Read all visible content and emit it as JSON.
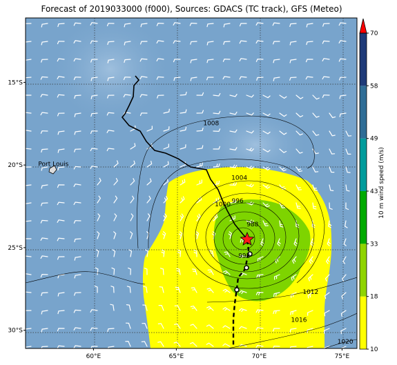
{
  "title": "Forecast of 2019033000 (f000), Sources: GDACS (TC track), GFS (Meteo)",
  "axes": {
    "lon_ticks": [
      {
        "lon": 60,
        "label": "60°E"
      },
      {
        "lon": 65,
        "label": "65°E"
      },
      {
        "lon": 70,
        "label": "70°E"
      },
      {
        "lon": 75,
        "label": "75°E"
      }
    ],
    "lat_ticks": [
      {
        "lat": -15,
        "label": "15°S"
      },
      {
        "lat": -20,
        "label": "20°S"
      },
      {
        "lat": -25,
        "label": "25°S"
      },
      {
        "lat": -30,
        "label": "30°S"
      }
    ],
    "lon_range": [
      55.9,
      75.9
    ],
    "lat_range": [
      -11.1,
      -31.1
    ]
  },
  "colorbar": {
    "label": "10 m wind speed (m/s)",
    "ticks": [
      "10",
      "18",
      "33",
      "43",
      "49",
      "58",
      "70"
    ],
    "colors": [
      "#ffff00",
      "#8fd400",
      "#00aa00",
      "#009c9c",
      "#2f6d96",
      "#1e3a78"
    ],
    "extend_color": "#ff0000"
  },
  "city": {
    "name": "Port Louis",
    "lat": -20.15,
    "lon": 57.5
  },
  "isobars": [
    {
      "label": "1000",
      "lat": -22.5,
      "lon": 67.8
    },
    {
      "label": "1004",
      "lat": -20.9,
      "lon": 68.8
    },
    {
      "label": "1008",
      "lat": -17.6,
      "lon": 67.1
    },
    {
      "label": "996",
      "lat": -22.3,
      "lon": 68.7
    },
    {
      "label": "988",
      "lat": -23.7,
      "lon": 69.6
    },
    {
      "label": "992",
      "lat": -25.6,
      "lon": 69.1
    },
    {
      "label": "1012",
      "lat": -27.8,
      "lon": 73.1
    },
    {
      "label": "1016",
      "lat": -29.5,
      "lon": 72.4
    },
    {
      "label": "1020",
      "lat": -30.8,
      "lon": 75.2
    }
  ],
  "storm_center": {
    "lat": -24.4,
    "lon": 69.2
  },
  "colors": {
    "ocean": "#78a4cc",
    "grid": "#3a3a3a",
    "track": "#000000",
    "center": "#ff1a1a"
  }
}
